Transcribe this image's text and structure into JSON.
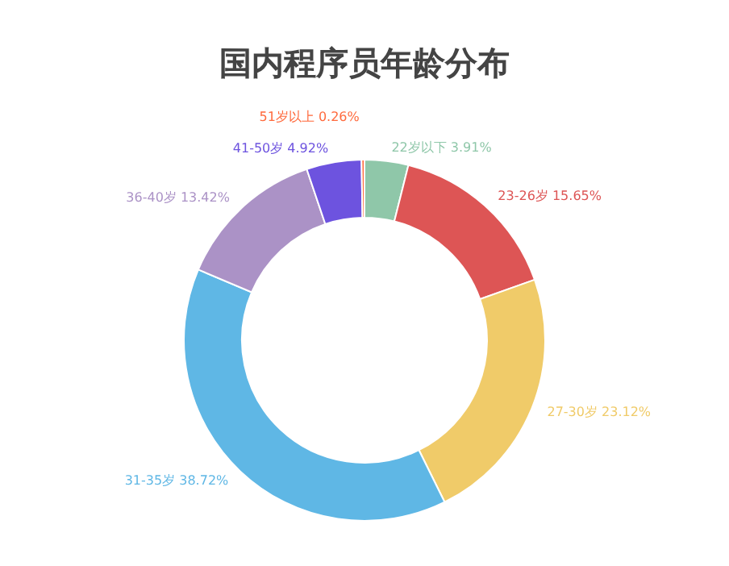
{
  "chart_data": {
    "type": "donut",
    "title": "国内程序员年龄分布",
    "categories": [
      "22岁以下",
      "23-26岁",
      "27-30岁",
      "31-35岁",
      "36-40岁",
      "41-50岁",
      "51岁以上"
    ],
    "values": [
      3.91,
      15.65,
      23.12,
      38.72,
      13.42,
      4.92,
      0.26
    ],
    "value_labels": [
      "3.91%",
      "15.65%",
      "23.12%",
      "38.72%",
      "13.42%",
      "4.92%",
      "0.26%"
    ],
    "colors": [
      "#8fc7a9",
      "#dd5555",
      "#f0cb69",
      "#5fb7e5",
      "#ab92c6",
      "#6d53df",
      "#ff6a3d"
    ],
    "legend": false
  }
}
